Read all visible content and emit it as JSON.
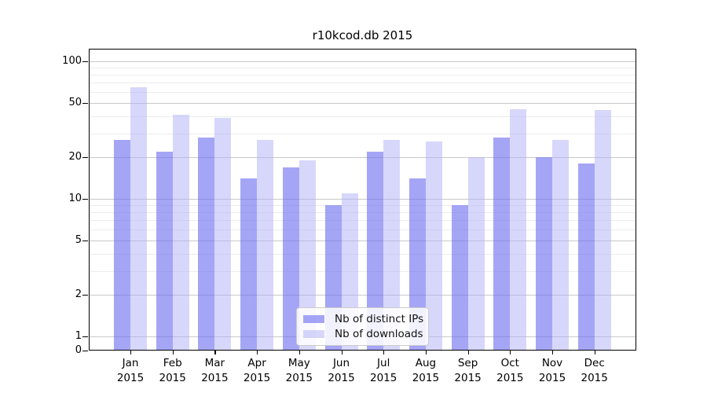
{
  "chart_data": {
    "type": "bar",
    "title": "r10kcod.db 2015",
    "yscale": "log",
    "xlabel": "",
    "ylabel": "",
    "categories": [
      "Jan 2015",
      "Feb 2015",
      "Mar 2015",
      "Apr 2015",
      "May 2015",
      "Jun 2015",
      "Jul 2015",
      "Aug 2015",
      "Sep 2015",
      "Oct 2015",
      "Nov 2015",
      "Dec 2015"
    ],
    "series": [
      {
        "name": "Nb of distinct IPs",
        "color": "#a9a9f5",
        "values": [
          27,
          22,
          28,
          14,
          17,
          9,
          22,
          14,
          9,
          28,
          20,
          18
        ]
      },
      {
        "name": "Nb of downloads",
        "color": "#d8d8fa",
        "values": [
          65,
          41,
          39,
          27,
          19,
          11,
          27,
          26,
          20,
          45,
          27,
          44
        ]
      }
    ],
    "ytick_labels": [
      "100",
      "50",
      "20",
      "10",
      "5",
      "2",
      "1",
      "0"
    ],
    "ytick_values": [
      100,
      50,
      20,
      10,
      5,
      2,
      1,
      0
    ],
    "grid_major_values": [
      1,
      2,
      5,
      10,
      20,
      50,
      100
    ],
    "grid_minor_values": [
      3,
      4,
      6,
      7,
      8,
      9,
      30,
      40,
      60,
      70,
      80,
      90
    ],
    "ylim": [
      0,
      123
    ],
    "grid": true,
    "legend_position": "lower center"
  }
}
